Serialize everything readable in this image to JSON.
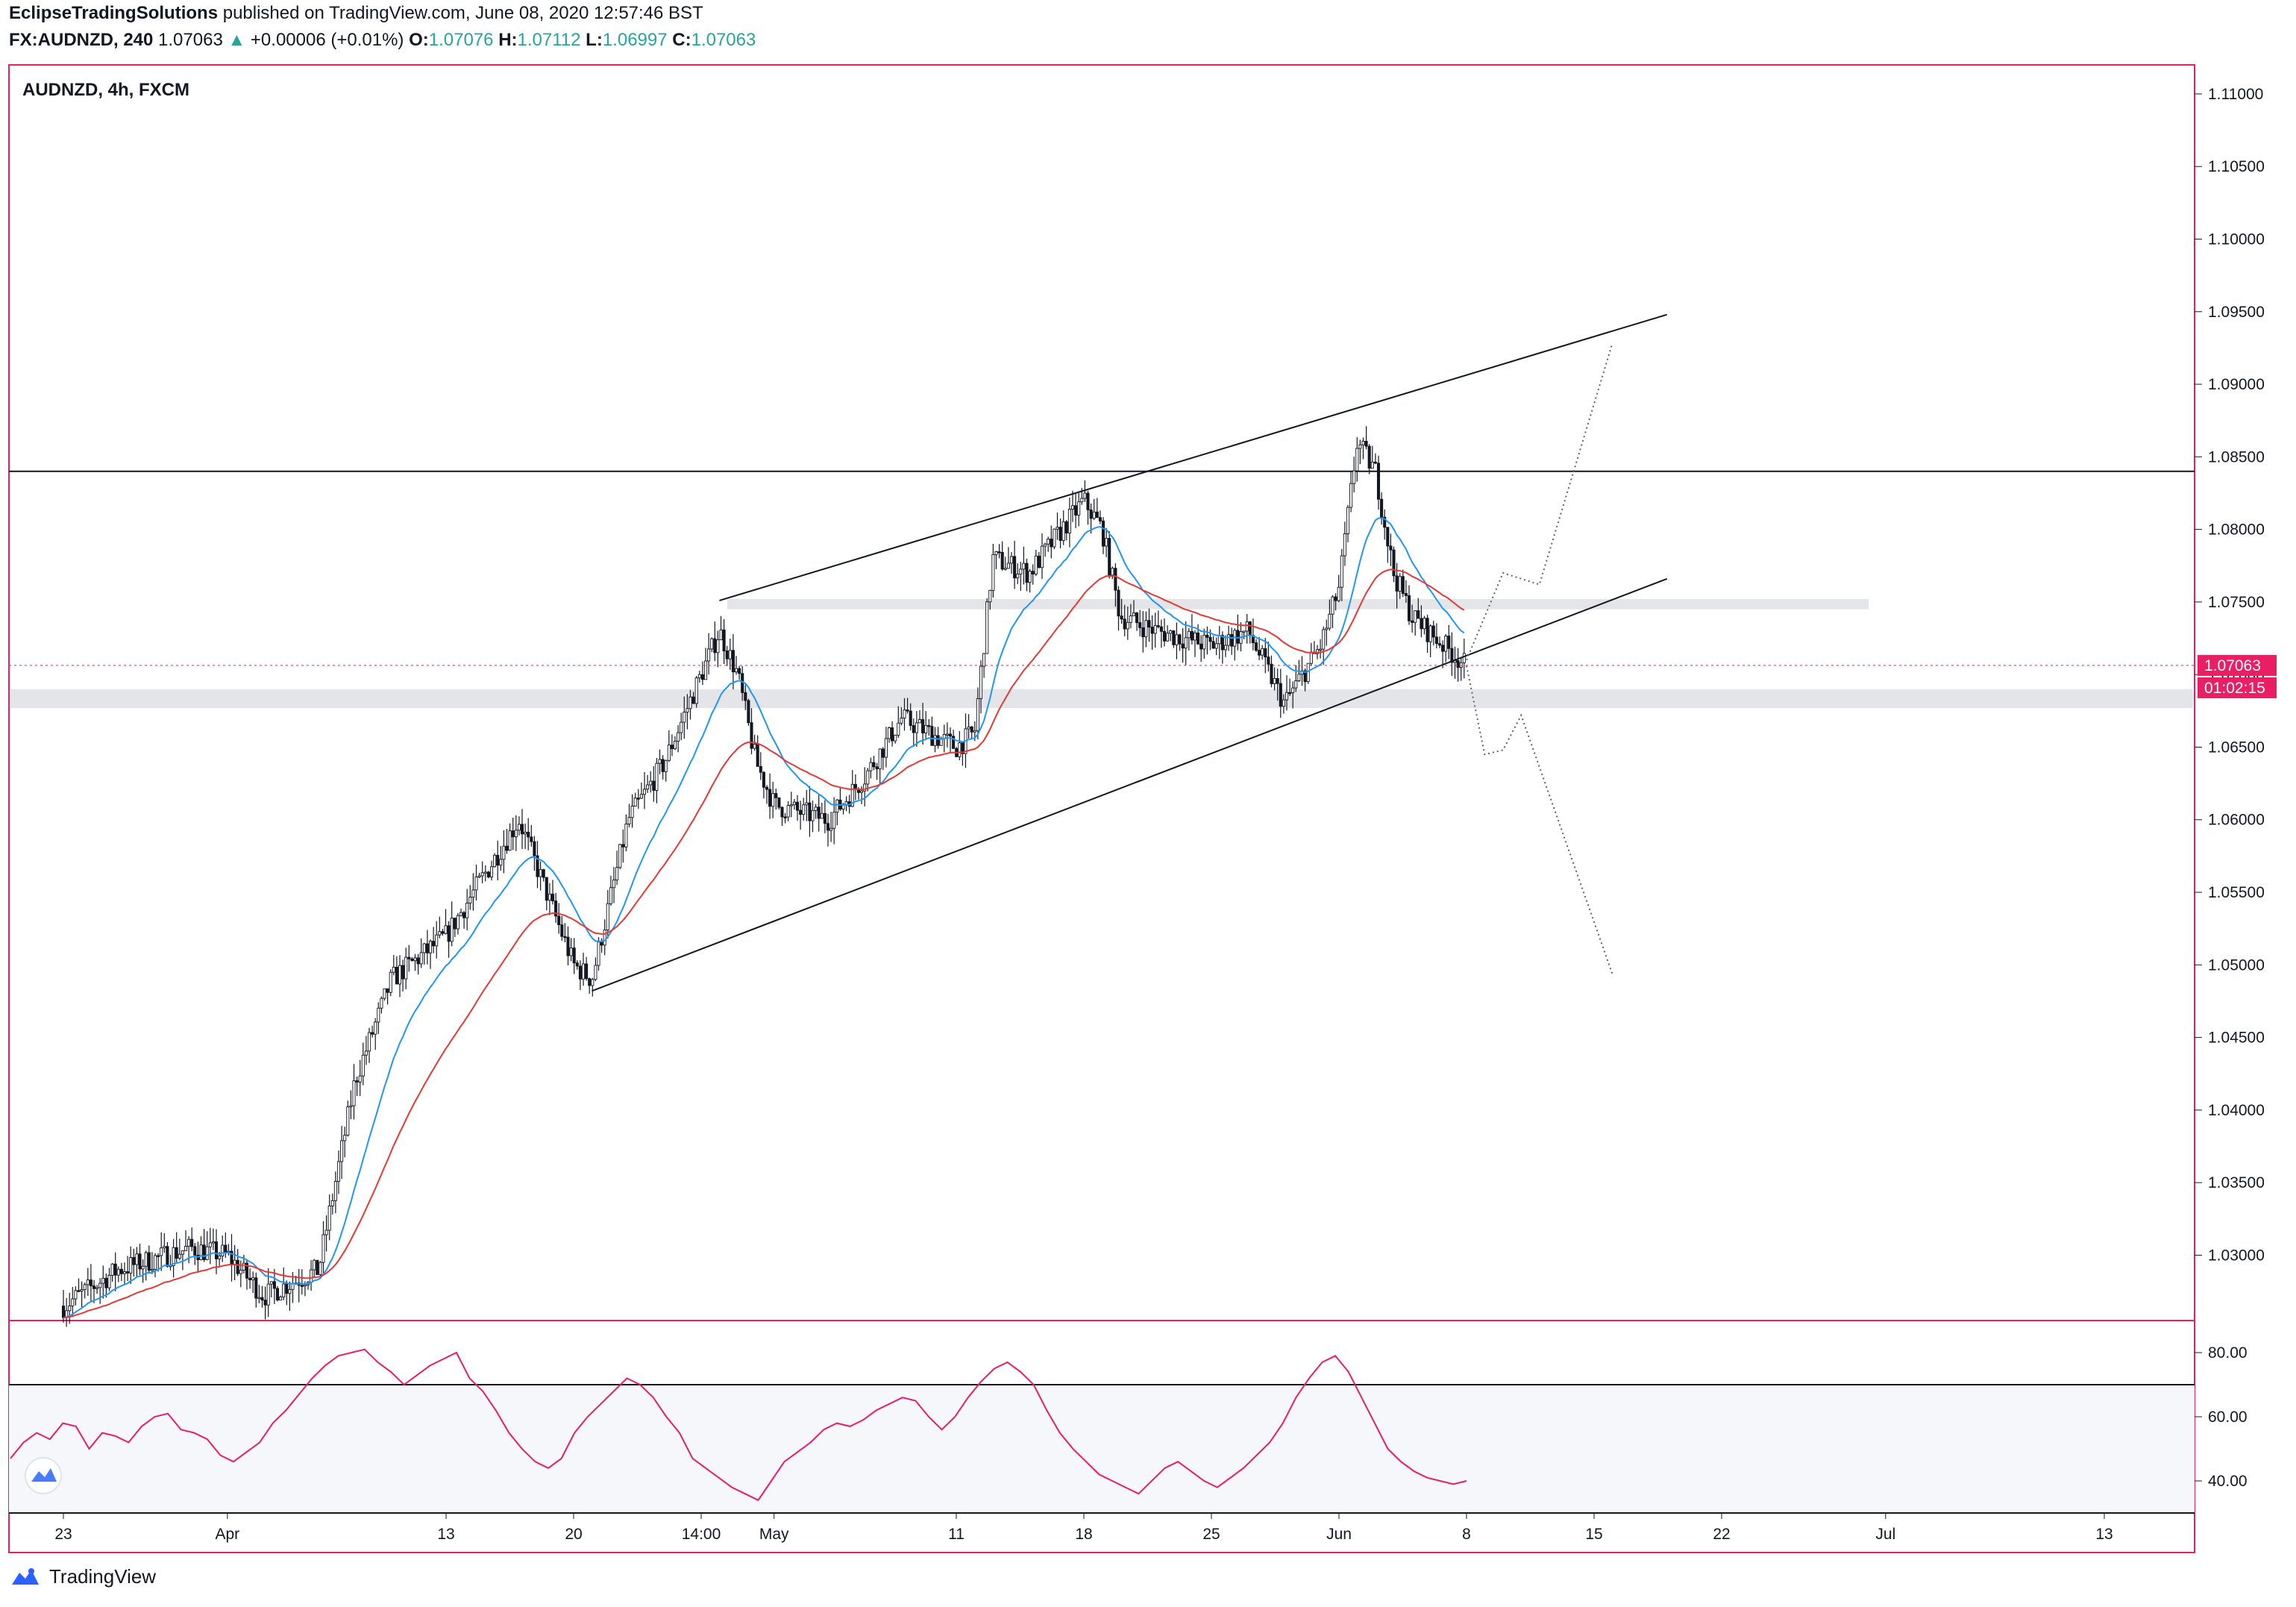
{
  "header": {
    "author": "EclipseTradingSolutions",
    "published": "published on TradingView.com, June 08, 2020 12:57:46 BST",
    "symbol": "FX:AUDNZD, 240",
    "last": "1.07063",
    "change": "+0.00006 (+0.01%)",
    "o_label": "O:",
    "o_value": "1.07076",
    "h_label": "H:",
    "h_value": "1.07112",
    "l_label": "L:",
    "l_value": "1.06997",
    "c_label": "C:",
    "c_value": "1.07063"
  },
  "pane_title": "AUDNZD, 4h, FXCM",
  "price_tag": {
    "value": "1.07063",
    "countdown": "01:02:15"
  },
  "footer": {
    "brand": "TradingView"
  },
  "colors": {
    "accent": "#e91e63",
    "bull": "#26a69a",
    "ema_fast": "#2196f3",
    "ema_slow": "#e53935",
    "rsi": "#e91e63"
  },
  "chart_data": [
    {
      "type": "candlestick",
      "title": "AUDNZD, 4h, FXCM",
      "ylim": [
        1.0255,
        1.112
      ],
      "y_ticks": [
        "1.11000",
        "1.10500",
        "1.10000",
        "1.09500",
        "1.09000",
        "1.08500",
        "1.08000",
        "1.07500",
        "1.07000",
        "1.06500",
        "1.06000",
        "1.05500",
        "1.05000",
        "1.04500",
        "1.04000",
        "1.03500",
        "1.03000"
      ],
      "x_ticks": [
        "23",
        "Apr",
        "13",
        "20",
        "14:00",
        "May",
        "11",
        "18",
        "25",
        "Jun",
        "8",
        "15",
        "22",
        "Jul",
        "13"
      ],
      "last_price": 1.07063,
      "close_path": [
        [
          "Mar 23",
          1.0265
        ],
        [
          "Mar 26",
          1.029
        ],
        [
          "Mar 30",
          1.0305
        ],
        [
          "Apr 1",
          1.03
        ],
        [
          "Apr 3",
          1.0272
        ],
        [
          "Apr 6",
          1.029
        ],
        [
          "Apr 8",
          1.042
        ],
        [
          "Apr 10",
          1.049
        ],
        [
          "Apr 13",
          1.052
        ],
        [
          "Apr 15",
          1.056
        ],
        [
          "Apr 17",
          1.06
        ],
        [
          "Apr 20",
          1.05
        ],
        [
          "Apr 21",
          1.049
        ],
        [
          "Apr 23",
          1.06
        ],
        [
          "Apr 25",
          1.064
        ],
        [
          "Apr 28",
          1.073
        ],
        [
          "Apr 29",
          1.07
        ],
        [
          "Apr 30",
          1.064
        ],
        [
          "May 1",
          1.061
        ],
        [
          "May 4",
          1.06
        ],
        [
          "May 6",
          1.063
        ],
        [
          "May 8",
          1.067
        ],
        [
          "May 11",
          1.065
        ],
        [
          "May 12",
          1.066
        ],
        [
          "May 13",
          1.078
        ],
        [
          "May 15",
          1.077
        ],
        [
          "May 18",
          1.082
        ],
        [
          "May 19",
          1.08
        ],
        [
          "May 20",
          1.074
        ],
        [
          "May 22",
          1.073
        ],
        [
          "May 25",
          1.072
        ],
        [
          "May 27",
          1.073
        ],
        [
          "May 29",
          1.068
        ],
        [
          "May 31",
          1.072
        ],
        [
          "Jun 1",
          1.076
        ],
        [
          "Jun 2",
          1.086
        ],
        [
          "Jun 3",
          1.084
        ],
        [
          "Jun 4",
          1.077
        ],
        [
          "Jun 5",
          1.074
        ],
        [
          "Jun 8",
          1.0706
        ]
      ],
      "ema_fast_end": 1.0737,
      "ema_slow_end": 1.0745,
      "resistance_level": 1.084,
      "zones": [
        [
          1.0745,
          1.0752
        ],
        [
          1.0677,
          1.069
        ]
      ],
      "channel": {
        "upper": [
          [
            "Apr 28",
            1.0751
          ],
          [
            "Jun 19",
            1.0948
          ]
        ],
        "lower": [
          [
            "Apr 21",
            1.0482
          ],
          [
            "Jun 19",
            1.0766
          ]
        ]
      }
    },
    {
      "type": "line",
      "name": "RSI",
      "ylim": [
        30,
        90
      ],
      "y_ticks": [
        "80.00",
        "60.00",
        "40.00"
      ],
      "bands": [
        70,
        30
      ],
      "values": [
        47,
        52,
        55,
        53,
        58,
        57,
        50,
        55,
        54,
        52,
        57,
        60,
        61,
        56,
        55,
        53,
        48,
        46,
        49,
        52,
        58,
        62,
        67,
        72,
        76,
        79,
        80,
        81,
        77,
        74,
        70,
        73,
        76,
        78,
        80,
        72,
        68,
        62,
        55,
        50,
        46,
        44,
        47,
        55,
        60,
        64,
        68,
        72,
        70,
        66,
        60,
        55,
        47,
        44,
        41,
        38,
        36,
        34,
        40,
        46,
        49,
        52,
        56,
        58,
        57,
        59,
        62,
        64,
        66,
        65,
        60,
        56,
        60,
        66,
        71,
        75,
        77,
        74,
        70,
        62,
        55,
        50,
        46,
        42,
        40,
        38,
        36,
        40,
        44,
        46,
        43,
        40,
        38,
        41,
        44,
        48,
        52,
        58,
        66,
        72,
        77,
        79,
        74,
        66,
        58,
        50,
        46,
        43,
        41,
        40,
        39,
        40
      ]
    }
  ]
}
